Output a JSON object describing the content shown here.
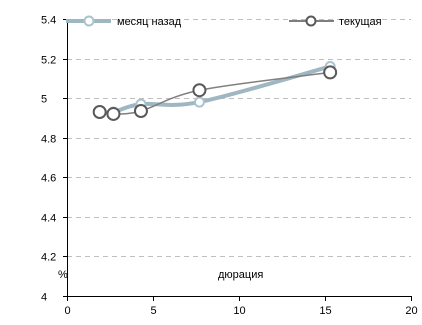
{
  "chart_data": {
    "type": "line",
    "x_axis": {
      "min": 0,
      "max": 20,
      "ticks": [
        0,
        5,
        10,
        15,
        20
      ],
      "tick_labels": [
        "0",
        "5",
        "10",
        "15",
        "20"
      ]
    },
    "y_axis": {
      "min": 4,
      "max": 5.4,
      "ticks": [
        4,
        4.2,
        4.4,
        4.6,
        4.8,
        5,
        5.2,
        5.4
      ],
      "tick_labels": [
        "4",
        "4.2",
        "4.4",
        "4.6",
        "4.8",
        "5",
        "5.2",
        "5.4"
      ]
    },
    "grid": "horizontal dashed",
    "legend_position": "top",
    "annotations": {
      "unit": "%",
      "xlabel": "дюрация"
    },
    "series": [
      {
        "name": "месяц назад",
        "color": "#9fb6c3",
        "marker_stroke": "#a9c3d0",
        "points": [
          {
            "x": 1.9,
            "y": 4.93
          },
          {
            "x": 2.7,
            "y": 4.93
          },
          {
            "x": 4.3,
            "y": 4.97
          },
          {
            "x": 7.7,
            "y": 4.98
          },
          {
            "x": 15.3,
            "y": 5.16
          }
        ]
      },
      {
        "name": "текущая",
        "color": "#7f7f7f",
        "marker_stroke": "#595959",
        "points": [
          {
            "x": 1.9,
            "y": 4.93
          },
          {
            "x": 2.7,
            "y": 4.92
          },
          {
            "x": 4.3,
            "y": 4.935
          },
          {
            "x": 7.7,
            "y": 5.04
          },
          {
            "x": 15.3,
            "y": 5.13
          }
        ]
      }
    ]
  }
}
